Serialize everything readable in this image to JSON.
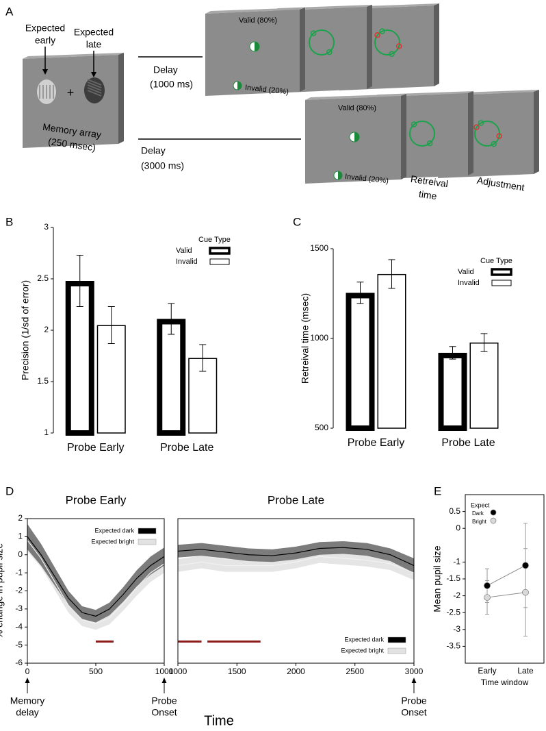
{
  "panel_labels": [
    "A",
    "B",
    "C",
    "D",
    "E"
  ],
  "diagram": {
    "expected_early": [
      "Expected",
      "early"
    ],
    "expected_late": [
      "Expected",
      "late"
    ],
    "fixation": "+",
    "memory_array": [
      "Memory array",
      "(250 msec)"
    ],
    "delay_short": [
      "Delay",
      "(1000 ms)"
    ],
    "delay_long": [
      "Delay",
      "(3000 ms)"
    ],
    "valid_short": "Valid (80%)",
    "invalid_short": "Invalid (20%)",
    "valid_long": "Valid (80%)",
    "invalid_long": "Invalid (20%)",
    "retrieval_time": [
      "Retreival",
      "time"
    ],
    "adjustment": "Adjustment"
  },
  "chart_data": [
    {
      "type": "bar",
      "ylabel": "Precision (1/sd of error)",
      "categories": [
        "Probe Early",
        "Probe Late"
      ],
      "legend_title": "Cue Type",
      "legend": "upper right",
      "series": [
        {
          "name": "Valid",
          "color": "#000000",
          "values": [
            2.48,
            2.11
          ],
          "errors": [
            0.25,
            0.15
          ]
        },
        {
          "name": "Invalid",
          "color": "#000000",
          "values": [
            2.05,
            1.73
          ],
          "errors": [
            0.18,
            0.13
          ]
        }
      ],
      "ylim": [
        1,
        3
      ],
      "yticks": [
        1,
        1.5,
        2,
        2.5,
        3
      ]
    },
    {
      "type": "bar",
      "ylabel": "Retreival time (msec)",
      "categories": [
        "Probe Early",
        "Probe Late"
      ],
      "legend_title": "Cue Type",
      "legend": "upper right",
      "series": [
        {
          "name": "Valid",
          "color": "#000000",
          "values": [
            1254,
            920
          ],
          "errors": [
            60,
            35
          ]
        },
        {
          "name": "Invalid",
          "color": "#000000",
          "values": [
            1359,
            977
          ],
          "errors": [
            80,
            50
          ]
        }
      ],
      "ylim": [
        500,
        1500
      ],
      "yticks": [
        500,
        1000,
        1500
      ]
    },
    {
      "type": "line",
      "title": "Probe Early",
      "ylabel": "% change in pupil size",
      "xlabel": "Time",
      "x": [
        0,
        100,
        200,
        300,
        400,
        500,
        600,
        700,
        800,
        900,
        1000
      ],
      "series": [
        {
          "name": "Expected dark",
          "color": "#000000",
          "band_color": "#6e6e6e",
          "values": [
            1.0,
            0.0,
            -1.2,
            -2.4,
            -3.2,
            -3.4,
            -3.0,
            -2.2,
            -1.3,
            -0.6,
            -0.1
          ],
          "errors": [
            0.7,
            0.6,
            0.5,
            0.4,
            0.35,
            0.35,
            0.35,
            0.4,
            0.45,
            0.5,
            0.5
          ]
        },
        {
          "name": "Expected bright",
          "color": "#f2f2f2",
          "band_color": "#e2e2e2",
          "values": [
            0.8,
            -0.2,
            -1.5,
            -2.8,
            -3.6,
            -3.8,
            -3.5,
            -2.7,
            -1.8,
            -1.0,
            -0.5
          ],
          "errors": [
            0.6,
            0.5,
            0.45,
            0.4,
            0.35,
            0.35,
            0.35,
            0.4,
            0.45,
            0.5,
            0.5
          ]
        }
      ],
      "sig_bars": [
        [
          500,
          630
        ]
      ],
      "sig_color": "#8b1a1a",
      "legend": "upper right",
      "annotations": [
        {
          "x": 0,
          "text": [
            "Memory",
            "delay"
          ]
        },
        {
          "x": 1000,
          "text": [
            "Probe",
            "Onset"
          ]
        }
      ],
      "xlim": [
        0,
        1000
      ],
      "xticks": [
        0,
        500,
        1000
      ],
      "ylim": [
        -6,
        2
      ],
      "yticks": [
        -6,
        -5,
        -4,
        -3,
        -2,
        -1,
        0,
        1,
        2
      ]
    },
    {
      "type": "line",
      "title": "Probe Late",
      "x": [
        1000,
        1200,
        1400,
        1600,
        1800,
        2000,
        2200,
        2400,
        2600,
        2800,
        3000
      ],
      "series": [
        {
          "name": "Expected dark",
          "color": "#000000",
          "band_color": "#6e6e6e",
          "values": [
            0.2,
            0.3,
            0.15,
            0.0,
            -0.05,
            0.1,
            0.35,
            0.4,
            0.3,
            0.0,
            -0.6
          ],
          "errors": [
            0.35,
            0.35,
            0.35,
            0.35,
            0.35,
            0.35,
            0.35,
            0.35,
            0.35,
            0.35,
            0.4
          ]
        },
        {
          "name": "Expected bright",
          "color": "#f2f2f2",
          "band_color": "#e2e2e2",
          "values": [
            -0.6,
            -0.4,
            -0.6,
            -0.6,
            -0.6,
            -0.4,
            -0.1,
            -0.2,
            -0.3,
            -0.5,
            -1.0
          ],
          "errors": [
            0.35,
            0.35,
            0.35,
            0.35,
            0.35,
            0.35,
            0.35,
            0.35,
            0.35,
            0.35,
            0.4
          ]
        }
      ],
      "sig_bars": [
        [
          1000,
          1200
        ],
        [
          1250,
          1700
        ]
      ],
      "sig_color": "#8b1a1a",
      "legend": "lower right",
      "annotations": [
        {
          "x": 3000,
          "text": [
            "Probe",
            "Onset"
          ]
        }
      ],
      "xlim": [
        1000,
        3000
      ],
      "xticks": [
        1000,
        1500,
        2000,
        2500,
        3000
      ],
      "ylim": [
        -6,
        2
      ]
    },
    {
      "type": "scatter",
      "ylabel": "Mean pupil size",
      "xlabel": "Time window",
      "categories": [
        "Early",
        "Late"
      ],
      "legend_title": "Expect",
      "legend": "upper left",
      "series": [
        {
          "name": "Dark",
          "color": "#000000",
          "values": [
            -1.7,
            -1.1
          ],
          "errors": [
            0.5,
            1.25
          ]
        },
        {
          "name": "Bright",
          "color": "#d9d9d9",
          "values": [
            -2.05,
            -1.9
          ],
          "errors": [
            0.5,
            1.3
          ]
        }
      ],
      "ylim": [
        -4,
        1
      ],
      "yticks": [
        -3.5,
        -3,
        -2.5,
        -2,
        -1.5,
        -1,
        0,
        0.5
      ]
    }
  ]
}
